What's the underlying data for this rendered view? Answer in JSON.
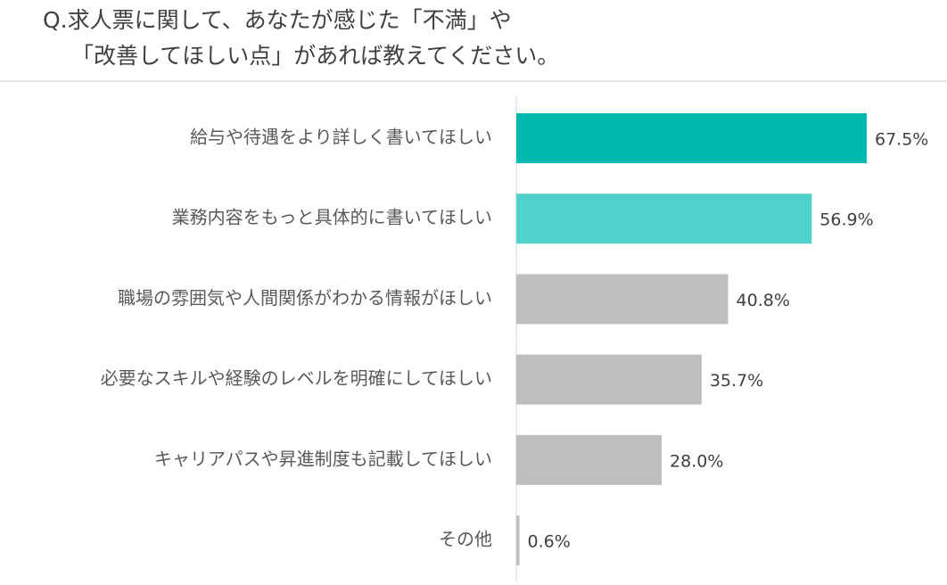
{
  "chart_data": {
    "type": "bar",
    "orientation": "horizontal",
    "title": [
      "Q.求人票に関して、あなたが感じた「不満」や",
      "「改善してほしい点」があれば教えてください。"
    ],
    "categories": [
      "給与や待遇をより詳しく書いてほしい",
      "業務内容をもっと具体的に書いてほしい",
      "職場の雰囲気や人間関係がわかる情報がほしい",
      "必要なスキルや経験のレベルを明確にしてほしい",
      "キャリアパスや昇進制度も記載してほしい",
      "その他"
    ],
    "values": [
      67.5,
      56.9,
      40.8,
      35.7,
      28.0,
      0.6
    ],
    "value_labels": [
      "67.5%",
      "56.9%",
      "40.8%",
      "35.7%",
      "28.0%",
      "0.6%"
    ],
    "colors": [
      "#00b9b1",
      "#4fd2cb",
      "#bdbebd",
      "#bdbebd",
      "#bdbebd",
      "#bdbebd"
    ]
  }
}
